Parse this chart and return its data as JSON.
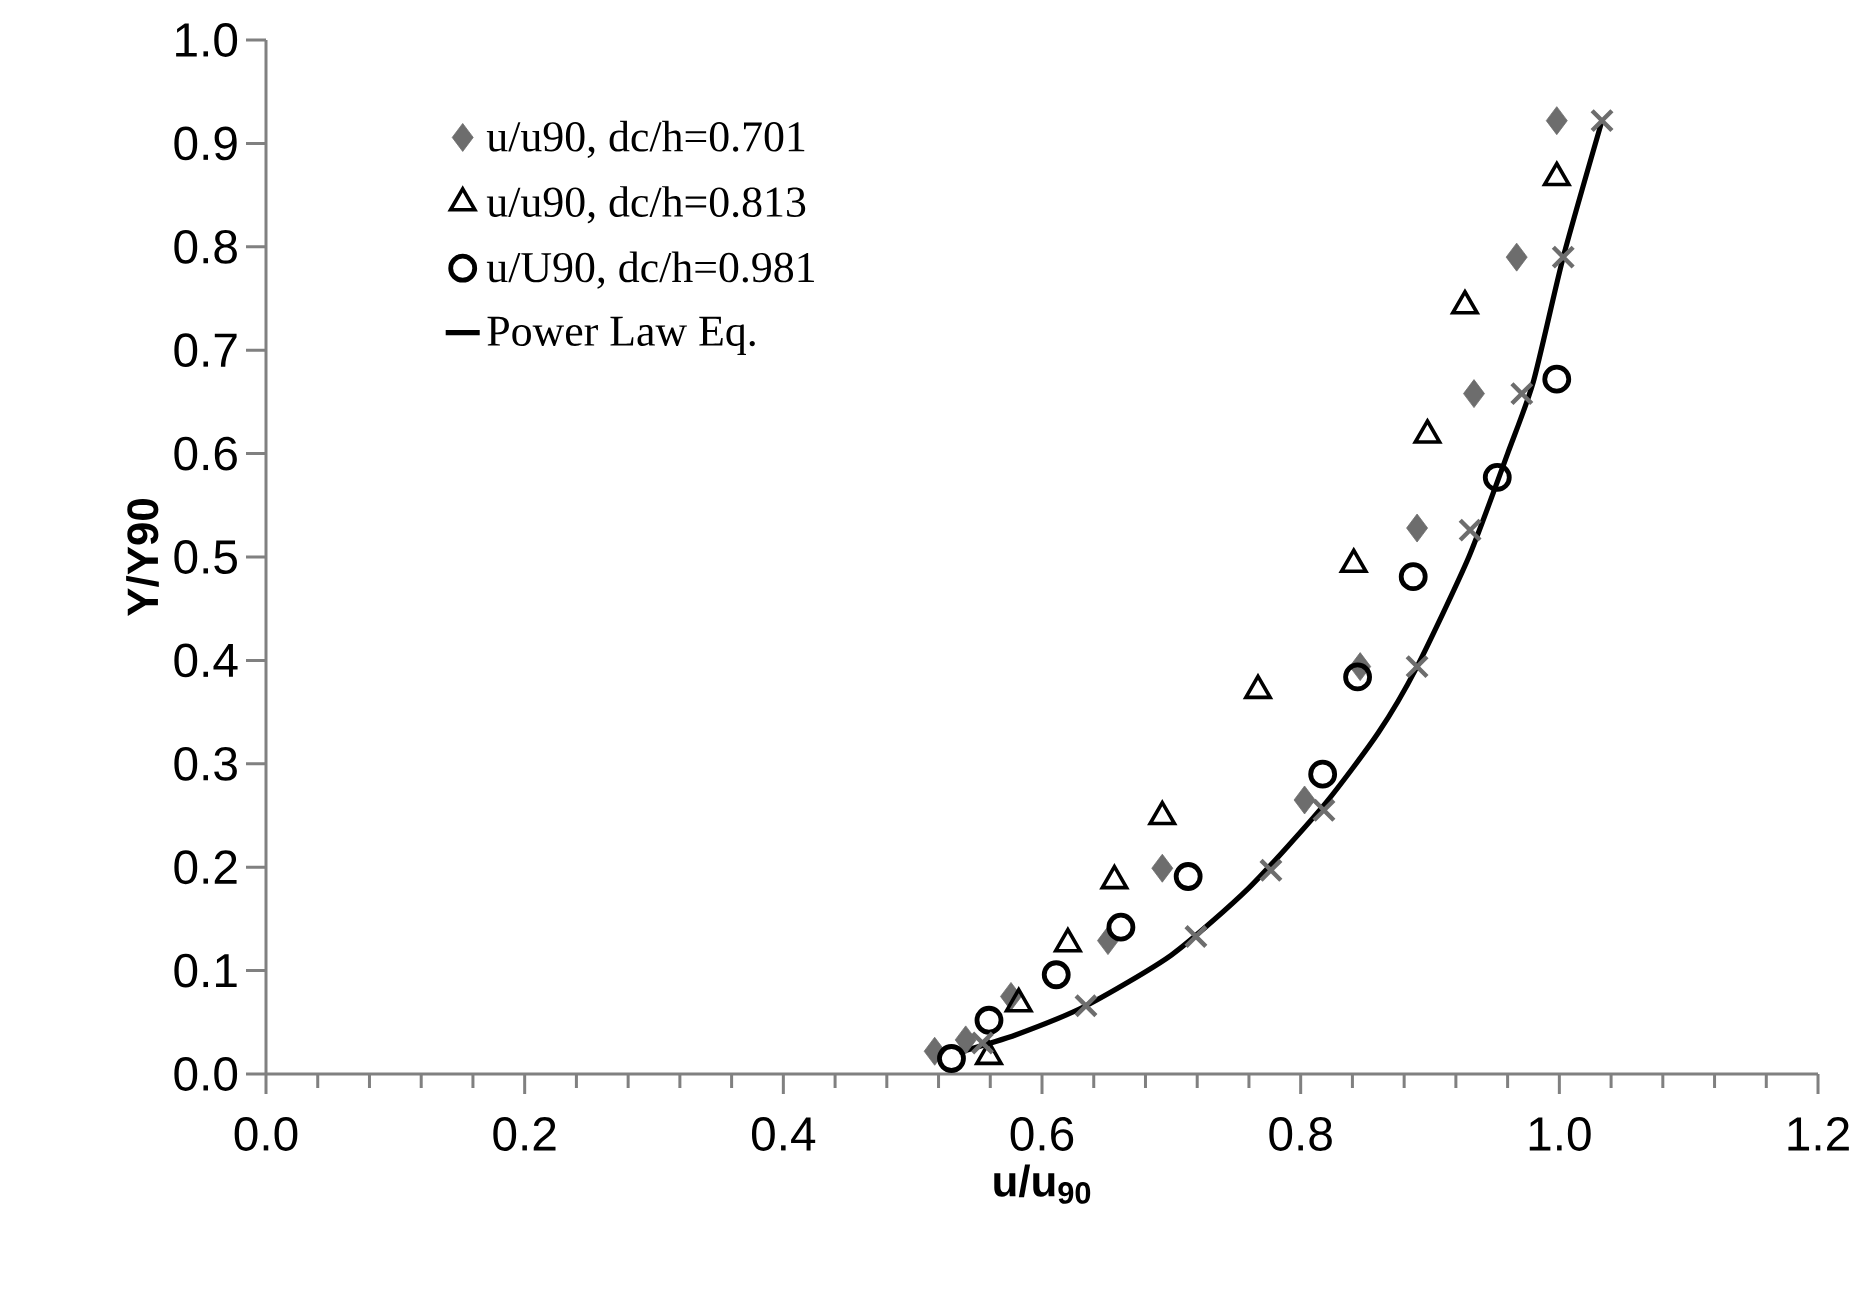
{
  "chart_data": {
    "type": "scatter",
    "xlabel": "u/u$_{90}$",
    "ylabel": "Y/Y90",
    "xlim": [
      0,
      1.2
    ],
    "ylim": [
      0,
      1.0
    ],
    "xticks": [
      {
        "value": 0,
        "label": "0.0"
      },
      {
        "value": 0.2,
        "label": "0.2"
      },
      {
        "value": 0.4,
        "label": "0.4"
      },
      {
        "value": 0.6,
        "label": "0.6"
      },
      {
        "value": 0.8,
        "label": "0.8"
      },
      {
        "value": 1.0,
        "label": "1.0"
      },
      {
        "value": 1.2,
        "label": "1.2"
      }
    ],
    "yticks": [
      {
        "value": 0,
        "label": "0.0"
      },
      {
        "value": 0.1,
        "label": "0.1"
      },
      {
        "value": 0.2,
        "label": "0.2"
      },
      {
        "value": 0.3,
        "label": "0.3"
      },
      {
        "value": 0.4,
        "label": "0.4"
      },
      {
        "value": 0.5,
        "label": "0.5"
      },
      {
        "value": 0.6,
        "label": "0.6"
      },
      {
        "value": 0.7,
        "label": "0.7"
      },
      {
        "value": 0.8,
        "label": "0.8"
      },
      {
        "value": 0.9,
        "label": "0.9"
      },
      {
        "value": 1.0,
        "label": "1.0"
      }
    ],
    "grid": false,
    "legend": "top left",
    "series": [
      {
        "name": "u/u90, dc/h=0.701",
        "marker": "diamond",
        "color": "#6d6d6d",
        "x": [
          0.517,
          0.541,
          0.576,
          0.651,
          0.693,
          0.803,
          0.846,
          0.89,
          0.934,
          0.967,
          0.998
        ],
        "values": [
          0.022,
          0.033,
          0.075,
          0.129,
          0.199,
          0.265,
          0.394,
          0.528,
          0.658,
          0.79,
          0.922
        ]
      },
      {
        "name": "u/u90, dc/h=0.813",
        "marker": "triangle",
        "color": "#000000",
        "x": [
          0.559,
          0.582,
          0.62,
          0.656,
          0.693,
          0.767,
          0.841,
          0.898,
          0.927,
          0.998
        ],
        "values": [
          0.017,
          0.068,
          0.126,
          0.187,
          0.249,
          0.371,
          0.493,
          0.618,
          0.743,
          0.867
        ]
      },
      {
        "name": "u/U90, dc/h=0.981",
        "marker": "circle",
        "color": "#000000",
        "x": [
          0.53,
          0.559,
          0.611,
          0.661,
          0.713,
          0.817,
          0.844,
          0.887,
          0.952,
          0.998
        ],
        "values": [
          0.015,
          0.052,
          0.096,
          0.142,
          0.191,
          0.29,
          0.384,
          0.481,
          0.577,
          0.672
        ]
      },
      {
        "name": "Power Law Eq.",
        "type": "line",
        "marker": "none",
        "color": "#000000",
        "x": [
          0.536,
          0.58,
          0.634,
          0.7,
          0.76,
          0.818,
          0.86,
          0.89,
          0.93,
          0.96,
          0.98,
          1.003,
          1.033
        ],
        "values": [
          0.021,
          0.038,
          0.066,
          0.115,
          0.18,
          0.26,
          0.33,
          0.394,
          0.5,
          0.6,
          0.67,
          0.79,
          0.922
        ]
      },
      {
        "marker": "cross",
        "color": "#6d6d6d",
        "x": [
          0.554,
          0.634,
          0.719,
          0.777,
          0.818,
          0.89,
          0.931,
          0.971,
          1.003,
          1.033
        ],
        "values": [
          0.03,
          0.066,
          0.133,
          0.197,
          0.255,
          0.394,
          0.526,
          0.658,
          0.79,
          0.922
        ]
      }
    ]
  }
}
